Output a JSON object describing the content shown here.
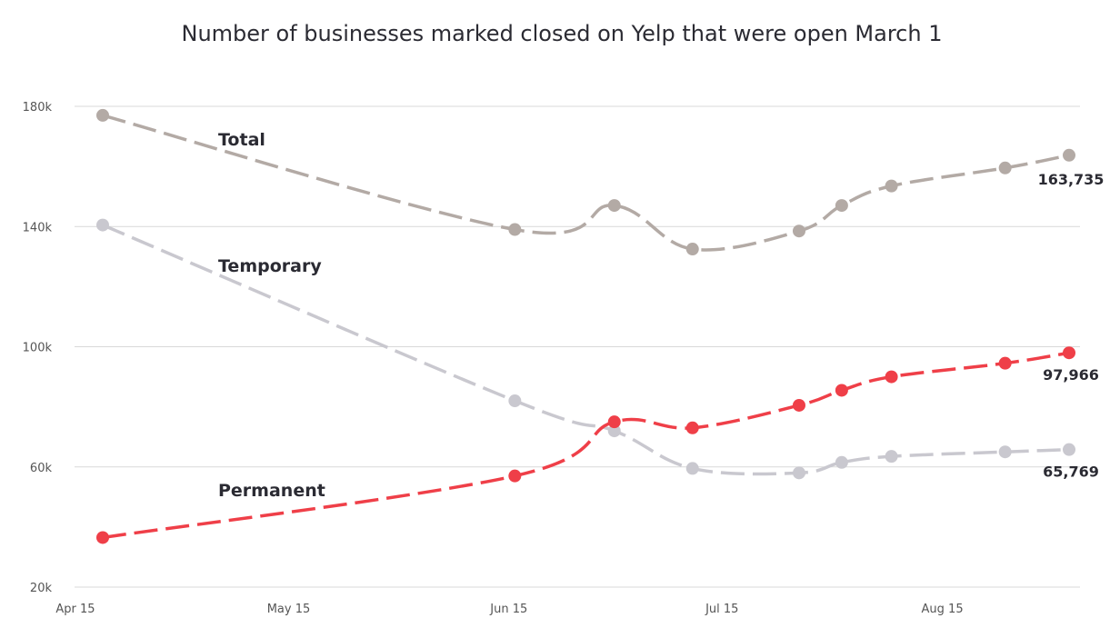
{
  "chart_data": {
    "type": "line",
    "title": "Number of businesses marked closed on Yelp that were open March 1",
    "xlabel": "",
    "ylabel": "",
    "x_ticks": [
      "Apr 15",
      "May 15",
      "Jun 15",
      "Jul 15",
      "Aug 15"
    ],
    "x_tick_days": [
      0,
      30,
      61,
      91,
      122
    ],
    "y_ticks": [
      20000,
      60000,
      100000,
      140000,
      180000
    ],
    "y_tick_labels": [
      "20k",
      "60k",
      "100k",
      "140k",
      "180k"
    ],
    "ylim": [
      20000,
      180000
    ],
    "xlim_days": [
      -6,
      135
    ],
    "grid": true,
    "legend": "none",
    "x_days": [
      0,
      58,
      72,
      83,
      98,
      104,
      111,
      127,
      136
    ],
    "series": [
      {
        "name": "Total",
        "color": "#b3aaa5",
        "values": [
          177000,
          139000,
          147000,
          132500,
          138500,
          147000,
          153500,
          159500,
          163735
        ],
        "end_label": "163,735"
      },
      {
        "name": "Temporary",
        "color": "#c9c8cf",
        "values": [
          140500,
          82000,
          72000,
          59500,
          58000,
          61500,
          63500,
          65000,
          65769
        ],
        "end_label": "65,769"
      },
      {
        "name": "Permanent",
        "color": "#ef3f48",
        "values": [
          36500,
          57000,
          75000,
          73000,
          80500,
          85500,
          90000,
          94500,
          97966
        ],
        "end_label": "97,966"
      }
    ]
  }
}
